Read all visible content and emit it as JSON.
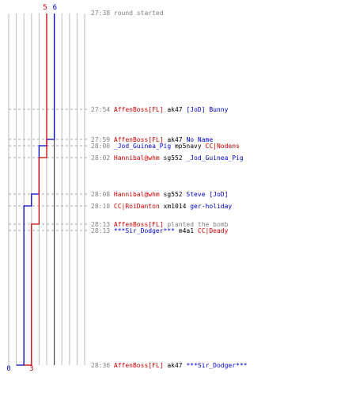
{
  "teams": [
    {
      "key": "blue",
      "color": "#0000cc",
      "start_count": "6",
      "end_count": "0"
    },
    {
      "key": "red",
      "color": "#cc0000",
      "start_count": "5",
      "end_count": "3"
    }
  ],
  "colors": {
    "grid": "#bbbbbb",
    "center_line": "#444444",
    "time": "#808080",
    "neutral_text": "#000000",
    "event_text": "#808080"
  },
  "events": [
    {
      "time": "27:38",
      "parts": [
        {
          "text": "round started",
          "team": "event"
        }
      ]
    },
    {
      "time": "27:54",
      "parts": [
        {
          "text": "AffenBoss[FL]",
          "team": "red"
        },
        {
          "text": " ak47 ",
          "team": "neutral"
        },
        {
          "text": "[JoD] Bunny",
          "team": "blue"
        }
      ]
    },
    {
      "time": "27:59",
      "parts": [
        {
          "text": "AffenBoss[FL]",
          "team": "red"
        },
        {
          "text": " ak47 ",
          "team": "neutral"
        },
        {
          "text": "No Name",
          "team": "blue"
        }
      ]
    },
    {
      "time": "28:00",
      "parts": [
        {
          "text": "_Jod_Guinea_Pig",
          "team": "blue"
        },
        {
          "text": " mp5navy ",
          "team": "neutral"
        },
        {
          "text": "CC|Nodens",
          "team": "red"
        }
      ]
    },
    {
      "time": "28:02",
      "parts": [
        {
          "text": "Hannibal@whm",
          "team": "red"
        },
        {
          "text": " sg552 ",
          "team": "neutral"
        },
        {
          "text": "_Jod_Guinea_Pig",
          "team": "blue"
        }
      ]
    },
    {
      "time": "28:08",
      "parts": [
        {
          "text": "Hannibal@whm",
          "team": "red"
        },
        {
          "text": " sg552 ",
          "team": "neutral"
        },
        {
          "text": "Steve [JoD]",
          "team": "blue"
        }
      ]
    },
    {
      "time": "28:10",
      "parts": [
        {
          "text": "CC|RoiDanton",
          "team": "red"
        },
        {
          "text": " xm1014 ",
          "team": "neutral"
        },
        {
          "text": "ger-holiday",
          "team": "blue"
        }
      ]
    },
    {
      "time": "28:13",
      "parts": [
        {
          "text": "AffenBoss[FL]",
          "team": "red"
        },
        {
          "text": " planted the bomb",
          "team": "event"
        }
      ]
    },
    {
      "time": "28:13",
      "parts": [
        {
          "text": "***Sir_Dodger***",
          "team": "blue"
        },
        {
          "text": " m4a1 ",
          "team": "neutral"
        },
        {
          "text": "CC|Deady",
          "team": "red"
        }
      ]
    },
    {
      "time": "28:36",
      "parts": [
        {
          "text": "AffenBoss[FL]",
          "team": "red"
        },
        {
          "text": " ak47 ",
          "team": "neutral"
        },
        {
          "text": "***Sir_Dodger***",
          "team": "blue"
        }
      ]
    }
  ],
  "chart_data": {
    "type": "line",
    "series": [
      {
        "values": [
          6,
          6,
          5,
          4,
          4,
          3,
          2,
          2,
          2,
          1,
          0
        ]
      },
      {
        "values": [
          5,
          5,
          5,
          5,
          4,
          4,
          4,
          3,
          3,
          2,
          3
        ]
      }
    ]
  }
}
